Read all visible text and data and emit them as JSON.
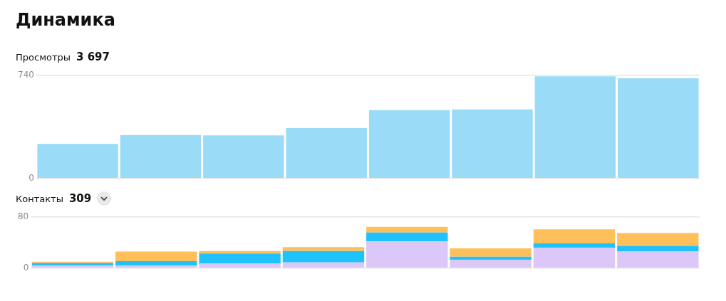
{
  "chart_data": [
    {
      "type": "bar",
      "title": "Динамика",
      "subtitle": "Просмотры",
      "annotations": [
        "3 697"
      ],
      "categories": [
        null,
        null,
        null,
        null,
        null,
        null,
        null,
        null
      ],
      "values": [
        248,
        313,
        310,
        362,
        492,
        497,
        735,
        720
      ],
      "color": "#9adcf8",
      "ylim": [
        0,
        740
      ],
      "yticks": [
        0,
        740
      ],
      "grid": "y",
      "legend": false
    },
    {
      "type": "bar",
      "subtitle": "Контакты",
      "annotations": [
        "309"
      ],
      "categories": [
        null,
        null,
        null,
        null,
        null,
        null,
        null,
        null
      ],
      "stacked": true,
      "series": [
        {
          "color": "#dcc8f8",
          "values": [
            4,
            4,
            7,
            9,
            42,
            13,
            32,
            26
          ]
        },
        {
          "color": "#1fc2fb",
          "values": [
            4,
            7,
            16,
            18,
            14,
            5,
            7,
            9
          ]
        },
        {
          "color": "#ffc05c",
          "values": [
            2,
            15,
            4,
            6,
            9,
            13,
            22,
            20
          ]
        }
      ],
      "ylim": [
        0,
        80
      ],
      "yticks": [
        0,
        80
      ],
      "grid": "y",
      "legend": false
    }
  ]
}
